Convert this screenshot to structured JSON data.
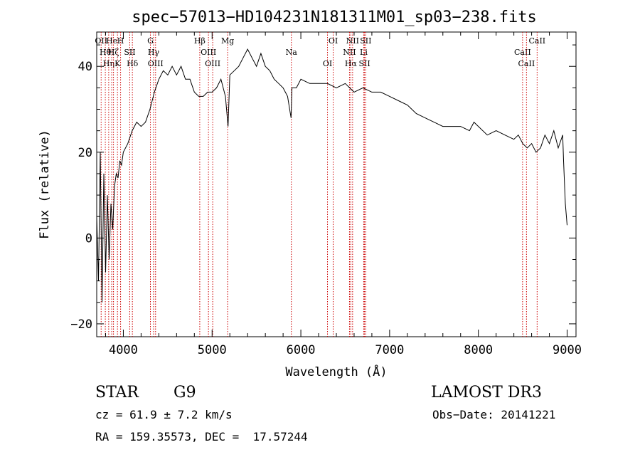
{
  "chart_data": {
    "type": "line",
    "title": "spec−57013−HD104231N181311M01_sp03−238.fits",
    "xlabel": "Wavelength (Å)",
    "ylabel": "Flux (relative)",
    "xlim": [
      3700,
      9100
    ],
    "ylim": [
      -23,
      48
    ],
    "xticks": [
      4000,
      5000,
      6000,
      7000,
      8000,
      9000
    ],
    "yticks": [
      -20,
      0,
      20,
      40
    ],
    "ytick_labels": [
      "−20",
      "0",
      "20",
      "40"
    ],
    "line_color": "#000000",
    "marker_color": "#cc0000",
    "grid": false,
    "series": [
      {
        "x": [
          3700,
          3720,
          3740,
          3760,
          3780,
          3800,
          3820,
          3840,
          3860,
          3880,
          3900,
          3920,
          3940,
          3960,
          3980,
          4000,
          4050,
          4100,
          4150,
          4200,
          4250,
          4300,
          4350,
          4400,
          4450,
          4500,
          4550,
          4600,
          4650,
          4700,
          4750,
          4800,
          4850,
          4900,
          4950,
          5000,
          5050,
          5100,
          5150,
          5180,
          5200,
          5250,
          5300,
          5350,
          5400,
          5450,
          5500,
          5550,
          5600,
          5650,
          5700,
          5750,
          5800,
          5850,
          5890,
          5900,
          5950,
          6000,
          6100,
          6200,
          6300,
          6400,
          6500,
          6550,
          6600,
          6700,
          6800,
          6900,
          7000,
          7100,
          7200,
          7250,
          7300,
          7400,
          7500,
          7600,
          7700,
          7800,
          7900,
          7950,
          8000,
          8100,
          8200,
          8300,
          8400,
          8450,
          8500,
          8550,
          8600,
          8650,
          8700,
          8750,
          8800,
          8850,
          8900,
          8950,
          8960,
          8980,
          9000
        ],
        "y": [
          5,
          -10,
          20,
          -15,
          15,
          -8,
          10,
          -5,
          8,
          2,
          12,
          15,
          14,
          18,
          17,
          20,
          22,
          25,
          27,
          26,
          27,
          30,
          34,
          37,
          39,
          38,
          40,
          38,
          40,
          37,
          37,
          34,
          33,
          33,
          34,
          34,
          35,
          37,
          33,
          26,
          38,
          39,
          40,
          42,
          44,
          42,
          40,
          43,
          40,
          39,
          37,
          36,
          35,
          33,
          28,
          35,
          35,
          37,
          36,
          36,
          36,
          35,
          36,
          35,
          34,
          35,
          34,
          34,
          33,
          32,
          31,
          30,
          29,
          28,
          27,
          26,
          26,
          26,
          25,
          27,
          26,
          24,
          25,
          24,
          23,
          24,
          22,
          21,
          22,
          20,
          21,
          24,
          22,
          25,
          21,
          24,
          18,
          8,
          3
        ]
      }
    ],
    "lines": [
      {
        "x": 3750,
        "label": "OⅠⅠ"
      },
      {
        "x": 3797,
        "label": "Hθ"
      },
      {
        "x": 3835,
        "label": "Hη"
      },
      {
        "x": 3869,
        "label": "He"
      },
      {
        "x": 3889,
        "label": "Hζ"
      },
      {
        "x": 3934,
        "label": "K"
      },
      {
        "x": 3969,
        "label": "H"
      },
      {
        "x": 4072,
        "label": "SⅠⅠ"
      },
      {
        "x": 4102,
        "label": "Hδ"
      },
      {
        "x": 4305,
        "label": "G"
      },
      {
        "x": 4341,
        "label": "Hγ"
      },
      {
        "x": 4363,
        "label": "OⅠⅠⅠ"
      },
      {
        "x": 4861,
        "label": "Hβ"
      },
      {
        "x": 4959,
        "label": "OⅠⅠⅠ"
      },
      {
        "x": 5007,
        "label": "OⅠⅠⅠ"
      },
      {
        "x": 5175,
        "label": "Mg"
      },
      {
        "x": 5893,
        "label": "Na"
      },
      {
        "x": 6300,
        "label": "OⅠ"
      },
      {
        "x": 6364,
        "label": "OⅠ"
      },
      {
        "x": 6548,
        "label": "NⅠⅠ"
      },
      {
        "x": 6563,
        "label": "Hα"
      },
      {
        "x": 6583,
        "label": "NⅠⅠ"
      },
      {
        "x": 6708,
        "label": "Li"
      },
      {
        "x": 6717,
        "label": "SⅠⅠ"
      },
      {
        "x": 6731,
        "label": "SⅠⅠ"
      },
      {
        "x": 8498,
        "label": "CaⅠⅠ"
      },
      {
        "x": 8542,
        "label": "CaⅠⅠ"
      },
      {
        "x": 8662,
        "label": "CaⅠⅠ"
      }
    ]
  },
  "info": {
    "class": "STAR",
    "subclass": "G9",
    "survey": "LAMOST DR3",
    "cz": "cz = 61.9 ± 7.2 km/s",
    "obs_date": "Obs−Date: 20141221",
    "coords": "RA = 159.35573, DEC =  17.57244"
  }
}
